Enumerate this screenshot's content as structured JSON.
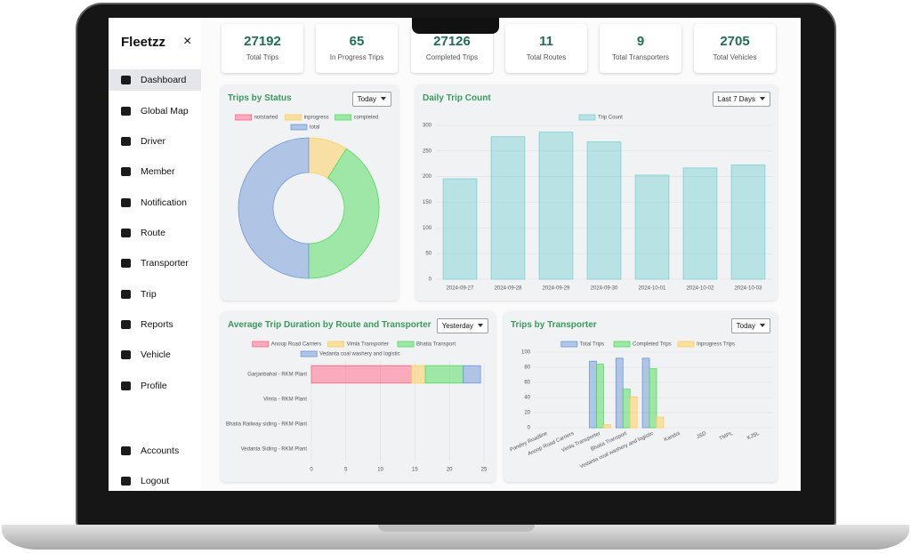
{
  "sidebar": {
    "brand": "Fleetzz",
    "close": "×",
    "menu": [
      "Dashboard",
      "Global Map",
      "Driver",
      "Member",
      "Notification",
      "Route",
      "Transporter",
      "Trip",
      "Reports",
      "Vehicle",
      "Profile"
    ],
    "bottom_menu": [
      "Accounts",
      "Logout"
    ]
  },
  "stats": [
    {
      "value": 27192,
      "label": "Total Trips"
    },
    {
      "value": 65,
      "label": "In Progress Trips"
    },
    {
      "value": 27126,
      "label": "Completed Trips"
    },
    {
      "value": 11,
      "label": "Total Routes"
    },
    {
      "value": 9,
      "label": "Total Transporters"
    },
    {
      "value": 2705,
      "label": "Total Vehicles"
    }
  ],
  "charts": [
    {
      "type": "doughnut",
      "title": "Trips by Status",
      "filter": "Today",
      "categories": [
        "notstarted",
        "inprogress",
        "completed",
        "total"
      ],
      "values": [
        0,
        9,
        41,
        50
      ],
      "colors": [
        "#ff6384",
        "#ffcd56",
        "#4bdc5a",
        "#6f97d8"
      ]
    },
    {
      "type": "bar",
      "title": "Daily Trip Count",
      "filter": "Last 7 Days",
      "categories": [
        "2024-09-27",
        "2024-09-28",
        "2024-09-29",
        "2024-09-30",
        "2024-10-01",
        "2024-10-02",
        "2024-10-03"
      ],
      "series": [
        {
          "name": "Trip Count",
          "color": "#7fd1d1",
          "values": [
            196,
            278,
            287,
            268,
            203,
            217,
            223
          ]
        }
      ],
      "ylim": [
        0,
        300
      ],
      "yticks": [
        0,
        50,
        100,
        150,
        200,
        250,
        300
      ]
    },
    {
      "type": "hbar-stacked",
      "title": "Average Trip Duration by Route and Transporter",
      "filter": "Yesterday",
      "categories": [
        "Garjanbahal - RKM Plant",
        "Vimla - RKM Plant",
        "Bhatia Railway siding - RKM Plant",
        "Vedanta Siding - RKM Plant"
      ],
      "series": [
        {
          "name": "Anoop Road Carriers",
          "color": "#ff6384",
          "values": [
            14.5,
            0,
            0,
            0
          ]
        },
        {
          "name": "Vimla Transporter",
          "color": "#ffcd56",
          "values": [
            2,
            0,
            0,
            0
          ]
        },
        {
          "name": "Bhatia Transport",
          "color": "#4bdc5a",
          "values": [
            5.5,
            0,
            0,
            0
          ]
        },
        {
          "name": "Vedanta coal washery and logistic",
          "color": "#6f97d8",
          "values": [
            2.5,
            0,
            0,
            0
          ]
        }
      ],
      "xlim": [
        0,
        25
      ],
      "xticks": [
        0,
        5,
        10,
        15,
        20,
        25
      ]
    },
    {
      "type": "grouped-bar",
      "title": "Trips by Transporter",
      "filter": "Today",
      "categories": [
        "Pandey Roadline",
        "Anoop Road Carriers",
        "Vimla Transporter",
        "Bhatia Transport",
        "Vedanta coal washery and logistic",
        "Kandoi",
        "JSD",
        "TMPL",
        "KJSL"
      ],
      "series": [
        {
          "name": "Total Trips",
          "color": "#6f97d8",
          "values": [
            0,
            0,
            88,
            92,
            92,
            0,
            0,
            0,
            0
          ]
        },
        {
          "name": "Completed Trips",
          "color": "#4bdc5a",
          "values": [
            0,
            0,
            84,
            51,
            78,
            0,
            0,
            0,
            0
          ]
        },
        {
          "name": "Inprogress Trips",
          "color": "#ffcd56",
          "values": [
            0,
            0,
            4,
            41,
            14,
            0,
            0,
            0,
            0
          ]
        }
      ],
      "ylim": [
        0,
        100
      ],
      "yticks": [
        0,
        20,
        40,
        60,
        80,
        100
      ]
    }
  ]
}
